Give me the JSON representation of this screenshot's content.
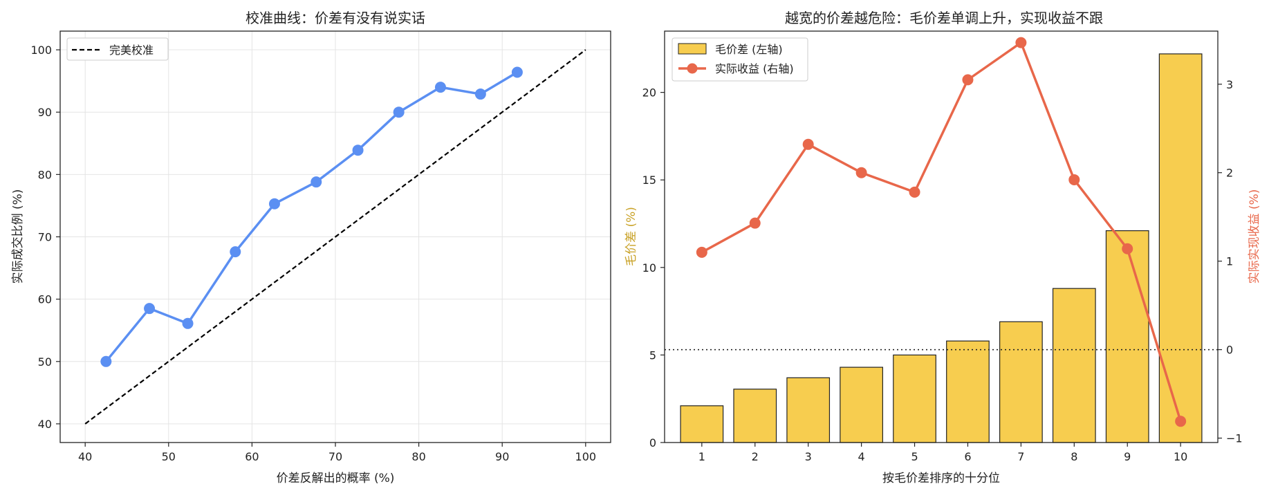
{
  "chart_data": [
    {
      "type": "line",
      "title": "校准曲线：价差有没有说实话",
      "xlabel": "价差反解出的概率 (%)",
      "ylabel": "实际成交比例 (%)",
      "xlim": [
        37,
        103
      ],
      "ylim": [
        37,
        103
      ],
      "xticks": [
        40,
        50,
        60,
        70,
        80,
        90,
        100
      ],
      "yticks": [
        40,
        50,
        60,
        70,
        80,
        90,
        100
      ],
      "grid": true,
      "legend_position": "top-left",
      "series": [
        {
          "name": "",
          "color": "#5b8ff2",
          "marker": "circle",
          "x": [
            42.5,
            47.7,
            52.3,
            58.0,
            62.7,
            67.7,
            72.7,
            77.6,
            82.6,
            87.4,
            91.8
          ],
          "y": [
            50.0,
            58.5,
            56.1,
            67.6,
            75.3,
            78.8,
            83.9,
            90.0,
            94.0,
            92.9,
            96.4
          ]
        },
        {
          "name": "完美校准",
          "color": "#000000",
          "style": "dashed",
          "x": [
            40,
            100
          ],
          "y": [
            40,
            100
          ]
        }
      ]
    },
    {
      "type": "bar",
      "title": "越宽的价差越危险：毛价差单调上升，实现收益不跟",
      "xlabel": "按毛价差排序的十分位",
      "ylabel": "毛价差 (%)",
      "ylabel_right": "实际实现收益 (%)",
      "ylabel_color": "#c9a227",
      "ylabel_right_color": "#e8674a",
      "categories": [
        "1",
        "2",
        "3",
        "4",
        "5",
        "6",
        "7",
        "8",
        "9",
        "10"
      ],
      "ylim": [
        0,
        23.5
      ],
      "ylim_right": [
        -1.05,
        3.6
      ],
      "yticks": [
        0,
        5,
        10,
        15,
        20
      ],
      "yticks_right": [
        -1,
        0,
        1,
        2,
        3
      ],
      "zero_line_right": 0,
      "legend_position": "top-left",
      "series": [
        {
          "name": "毛价差 (左轴)",
          "axis": "left",
          "kind": "bar",
          "color": "#f7cd4f",
          "values": [
            2.1,
            3.05,
            3.7,
            4.3,
            5.0,
            5.8,
            6.9,
            8.8,
            12.1,
            22.2
          ]
        },
        {
          "name": "实际收益 (右轴)",
          "axis": "right",
          "kind": "line",
          "color": "#e8674a",
          "values": [
            1.1,
            1.43,
            2.32,
            2.0,
            1.78,
            3.05,
            3.47,
            1.92,
            1.14,
            -0.81
          ]
        }
      ]
    }
  ]
}
